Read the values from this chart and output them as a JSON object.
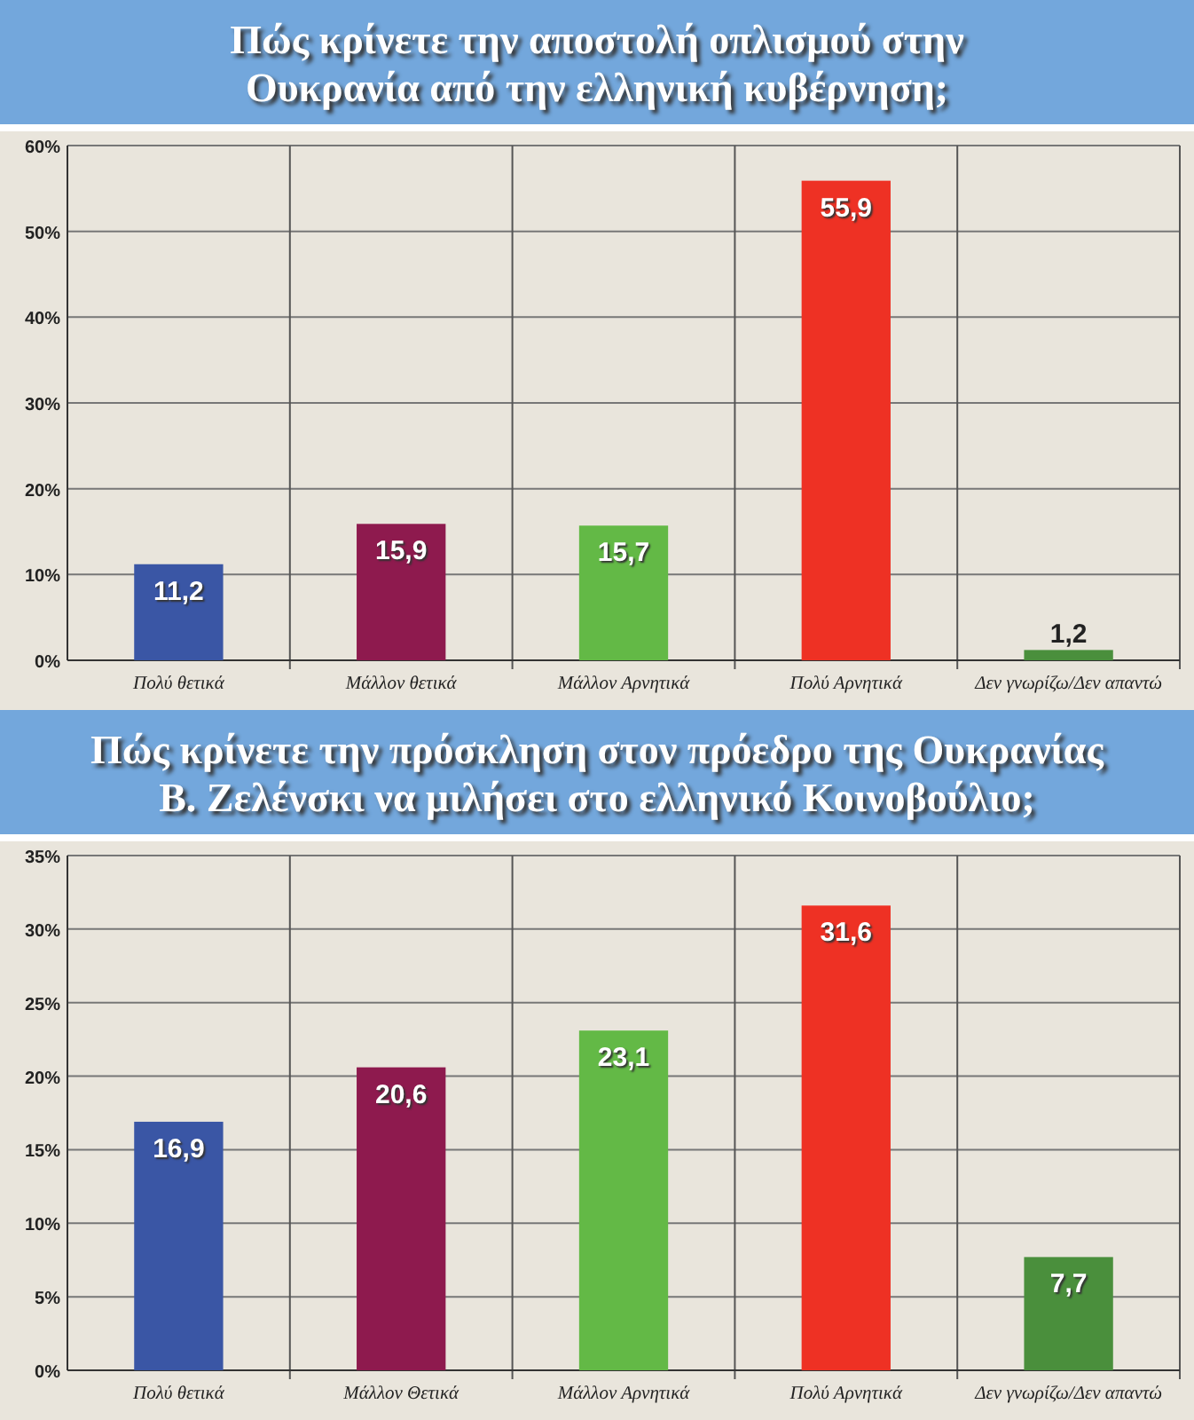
{
  "chart_data": [
    {
      "type": "bar",
      "title": "Πώς κρίνετε την αποστολή οπλισμού στην\nΟυκρανία από την ελληνική κυβέρνηση;",
      "categories": [
        "Πολύ θετικά",
        "Μάλλον θετικά",
        "Μάλλον Αρνητικά",
        "Πολύ Αρνητικά",
        "Δεν γνωρίζω/Δεν απαντώ"
      ],
      "values": [
        11.2,
        15.9,
        15.7,
        55.9,
        1.2
      ],
      "value_labels": [
        "11,2",
        "15,9",
        "15,7",
        "55,9",
        "1,2"
      ],
      "colors": [
        "#3a56a5",
        "#8e1a4e",
        "#63b946",
        "#ee3124",
        "#4a8f3c"
      ],
      "ylim": [
        0,
        60
      ],
      "yticks": [
        {
          "value": 0,
          "label": "0%"
        },
        {
          "value": 10,
          "label": "10%"
        },
        {
          "value": 20,
          "label": "20%"
        },
        {
          "value": 30,
          "label": "30%"
        },
        {
          "value": 40,
          "label": "40%"
        },
        {
          "value": 50,
          "label": "50%"
        },
        {
          "value": 60,
          "label": "60%"
        }
      ],
      "grid": true
    },
    {
      "type": "bar",
      "title": "Πώς κρίνετε την πρόσκληση στον πρόεδρο της Ουκρανίας\nΒ. Ζελένσκι να μιλήσει στο ελληνικό Κοινοβούλιο;",
      "categories": [
        "Πολύ θετικά",
        "Μάλλον Θετικά",
        "Μάλλον Αρνητικά",
        "Πολύ Αρνητικά",
        "Δεν γνωρίζω/Δεν απαντώ"
      ],
      "values": [
        16.9,
        20.6,
        23.1,
        31.6,
        7.7
      ],
      "value_labels": [
        "16,9",
        "20,6",
        "23,1",
        "31,6",
        "7,7"
      ],
      "colors": [
        "#3a56a5",
        "#8e1a4e",
        "#63b946",
        "#ee3124",
        "#4a8f3c"
      ],
      "ylim": [
        0,
        35
      ],
      "yticks": [
        {
          "value": 0,
          "label": "0%"
        },
        {
          "value": 5,
          "label": "5%"
        },
        {
          "value": 10,
          "label": "10%"
        },
        {
          "value": 15,
          "label": "15%"
        },
        {
          "value": 20,
          "label": "20%"
        },
        {
          "value": 25,
          "label": "25%"
        },
        {
          "value": 30,
          "label": "30%"
        },
        {
          "value": 35,
          "label": "35%"
        }
      ],
      "grid": true
    }
  ]
}
